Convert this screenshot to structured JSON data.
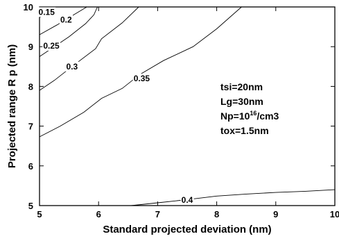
{
  "chart_data": {
    "type": "line",
    "title": "",
    "xlabel": "Standard projected deviation (nm)",
    "ylabel": "Projected range R p  (nm)",
    "xlim": [
      5,
      10
    ],
    "ylim": [
      5,
      10
    ],
    "xticks": [
      "5",
      "6",
      "7",
      "8",
      "9",
      "10"
    ],
    "yticks": [
      "5",
      "6",
      "7",
      "8",
      "9",
      "10"
    ],
    "grid": false,
    "legend": "none",
    "series": [
      {
        "name": "0.15",
        "points": [
          [
            5.0,
            9.73
          ],
          [
            5.12,
            9.87
          ],
          [
            5.25,
            10.0
          ]
        ]
      },
      {
        "name": "0.2",
        "points": [
          [
            5.0,
            9.3
          ],
          [
            5.3,
            9.55
          ],
          [
            5.6,
            9.82
          ],
          [
            5.8,
            10.0
          ]
        ]
      },
      {
        "name": "0.25",
        "points": [
          [
            5.0,
            8.75
          ],
          [
            5.2,
            8.95
          ],
          [
            5.5,
            9.25
          ],
          [
            5.78,
            9.58
          ],
          [
            5.92,
            9.8
          ],
          [
            5.98,
            10.0
          ]
        ]
      },
      {
        "name": "0.3",
        "points": [
          [
            5.0,
            7.9
          ],
          [
            5.25,
            8.15
          ],
          [
            5.55,
            8.5
          ],
          [
            5.95,
            8.95
          ],
          [
            6.05,
            9.2
          ],
          [
            6.4,
            9.6
          ],
          [
            6.68,
            10.0
          ]
        ]
      },
      {
        "name": "0.35",
        "points": [
          [
            5.0,
            6.73
          ],
          [
            5.35,
            7.0
          ],
          [
            5.75,
            7.35
          ],
          [
            6.05,
            7.7
          ],
          [
            6.4,
            7.95
          ],
          [
            6.7,
            8.3
          ],
          [
            7.1,
            8.65
          ],
          [
            7.6,
            9.0
          ],
          [
            8.0,
            9.45
          ],
          [
            8.42,
            10.0
          ]
        ]
      },
      {
        "name": "0.4",
        "points": [
          [
            6.55,
            5.0
          ],
          [
            7.0,
            5.07
          ],
          [
            7.5,
            5.15
          ],
          [
            8.0,
            5.24
          ],
          [
            8.5,
            5.29
          ],
          [
            9.0,
            5.33
          ],
          [
            9.5,
            5.36
          ],
          [
            10.0,
            5.4
          ]
        ]
      }
    ],
    "contour_labels": [
      {
        "text": "0.15",
        "x": 5.12,
        "y": 9.87
      },
      {
        "text": "0.2",
        "x": 5.45,
        "y": 9.68
      },
      {
        "text": "0.25",
        "x": 5.2,
        "y": 9.02
      },
      {
        "text": "0.3",
        "x": 5.55,
        "y": 8.5
      },
      {
        "text": "0.35",
        "x": 6.73,
        "y": 8.2
      },
      {
        "text": "0.4",
        "x": 7.5,
        "y": 5.14
      }
    ],
    "annotations": [
      {
        "base": "tsi=20nm",
        "sup": "",
        "tail": ""
      },
      {
        "base": "Lg=30nm",
        "sup": "",
        "tail": ""
      },
      {
        "base": "Np=10",
        "sup": "16",
        "tail": "/cm3"
      },
      {
        "base": "tox=1.5nm",
        "sup": "",
        "tail": ""
      }
    ]
  }
}
